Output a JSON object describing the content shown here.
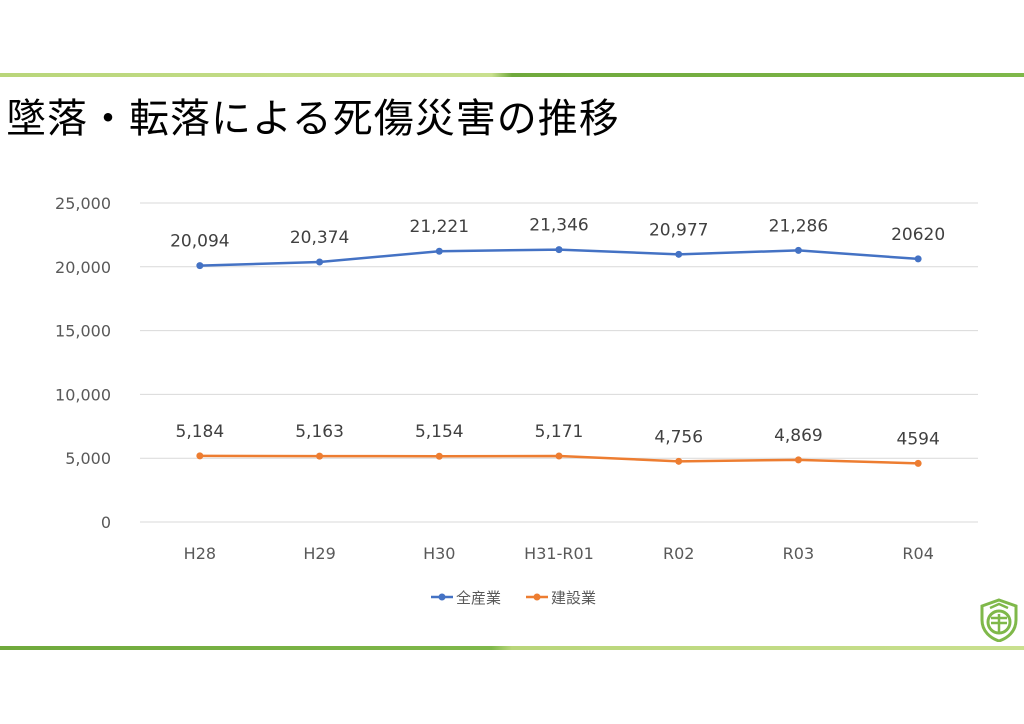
{
  "slide": {
    "title": "墜落・転落による死傷災害の推移"
  },
  "colors": {
    "series_all": "#4472c4",
    "series_construction": "#ed7d31",
    "grid": "#d9d9d9",
    "accent_green": "#7fb84a"
  },
  "logo": {
    "icon": "shield-logo-icon"
  },
  "chart_data": {
    "type": "line",
    "categories": [
      "H28",
      "H29",
      "H30",
      "H31-R01",
      "R02",
      "R03",
      "R04"
    ],
    "ylim": [
      0,
      25000
    ],
    "yticks": [
      "25,000",
      "20,000",
      "15,000",
      "10,000",
      "5,000",
      "0"
    ],
    "ytick_values": [
      25000,
      20000,
      15000,
      10000,
      5000,
      0
    ],
    "grid": true,
    "legend_position": "bottom",
    "series": [
      {
        "name": "全産業",
        "values": [
          20094,
          20374,
          21221,
          21346,
          20977,
          21286,
          20620
        ],
        "labels": [
          "20,094",
          "20,374",
          "21,221",
          "21,346",
          "20,977",
          "21,286",
          "20620"
        ]
      },
      {
        "name": "建設業",
        "values": [
          5184,
          5163,
          5154,
          5171,
          4756,
          4869,
          4594
        ],
        "labels": [
          "5,184",
          "5,163",
          "5,154",
          "5,171",
          "4,756",
          "4,869",
          "4594"
        ]
      }
    ]
  }
}
